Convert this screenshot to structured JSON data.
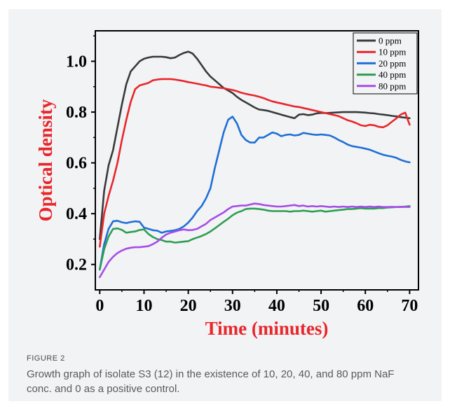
{
  "figure": {
    "label": "FIGURE 2",
    "caption": "Growth graph of isolate S3 (12) in the existence of 10, 20, 40, and 80 ppm NaF conc. and 0 as a positive control."
  },
  "chart_data": {
    "type": "line",
    "xlabel": "Time (minutes)",
    "ylabel": "Optical density",
    "xlim": [
      -1,
      72
    ],
    "ylim": [
      0.1,
      1.12
    ],
    "xticks": [
      0,
      10,
      20,
      30,
      40,
      50,
      60,
      70
    ],
    "yticks": [
      0.2,
      0.4,
      0.6,
      0.8,
      1.0
    ],
    "xtick_labels": [
      "0",
      "10",
      "20",
      "30",
      "40",
      "50",
      "60",
      "70"
    ],
    "ytick_labels": [
      "0.2",
      "0.4",
      "0.6",
      "0.8",
      "1.0"
    ],
    "xlabel_color": "#e8262b",
    "ylabel_color": "#e8262b",
    "legend_position": "top-right",
    "grid": false,
    "x": [
      0,
      1,
      2,
      3,
      4,
      5,
      6,
      7,
      8,
      9,
      10,
      11,
      12,
      13,
      14,
      15,
      16,
      17,
      18,
      19,
      20,
      21,
      22,
      23,
      24,
      25,
      26,
      27,
      28,
      29,
      30,
      31,
      32,
      33,
      34,
      35,
      36,
      37,
      38,
      39,
      40,
      41,
      42,
      43,
      44,
      45,
      46,
      47,
      48,
      49,
      50,
      51,
      52,
      53,
      54,
      55,
      56,
      57,
      58,
      59,
      60,
      61,
      62,
      63,
      64,
      65,
      66,
      67,
      68,
      69,
      70
    ],
    "series": [
      {
        "name": "0 ppm",
        "color": "#3a3a3a",
        "values": [
          0.3,
          0.49,
          0.59,
          0.65,
          0.74,
          0.83,
          0.91,
          0.96,
          0.98,
          1.0,
          1.01,
          1.015,
          1.018,
          1.018,
          1.018,
          1.016,
          1.012,
          1.015,
          1.025,
          1.033,
          1.038,
          1.03,
          1.01,
          0.985,
          0.96,
          0.94,
          0.925,
          0.91,
          0.895,
          0.885,
          0.875,
          0.86,
          0.848,
          0.838,
          0.828,
          0.818,
          0.81,
          0.808,
          0.805,
          0.8,
          0.795,
          0.79,
          0.785,
          0.78,
          0.776,
          0.79,
          0.792,
          0.788,
          0.79,
          0.795,
          0.797,
          0.796,
          0.797,
          0.798,
          0.799,
          0.8,
          0.8,
          0.8,
          0.8,
          0.799,
          0.798,
          0.796,
          0.795,
          0.792,
          0.79,
          0.788,
          0.785,
          0.783,
          0.78,
          0.778,
          0.776
        ]
      },
      {
        "name": "10 ppm",
        "color": "#e8262b",
        "values": [
          0.27,
          0.4,
          0.47,
          0.53,
          0.6,
          0.69,
          0.77,
          0.84,
          0.89,
          0.905,
          0.91,
          0.915,
          0.925,
          0.928,
          0.93,
          0.93,
          0.93,
          0.928,
          0.925,
          0.922,
          0.918,
          0.915,
          0.912,
          0.908,
          0.905,
          0.9,
          0.898,
          0.896,
          0.894,
          0.89,
          0.887,
          0.882,
          0.876,
          0.872,
          0.868,
          0.865,
          0.86,
          0.855,
          0.848,
          0.842,
          0.838,
          0.834,
          0.83,
          0.826,
          0.822,
          0.82,
          0.816,
          0.812,
          0.808,
          0.804,
          0.8,
          0.796,
          0.792,
          0.788,
          0.784,
          0.776,
          0.768,
          0.763,
          0.756,
          0.748,
          0.745,
          0.75,
          0.748,
          0.742,
          0.74,
          0.748,
          0.762,
          0.775,
          0.79,
          0.798,
          0.75
        ]
      },
      {
        "name": "20 ppm",
        "color": "#1f6fd6",
        "values": [
          0.18,
          0.28,
          0.34,
          0.37,
          0.372,
          0.366,
          0.363,
          0.367,
          0.37,
          0.368,
          0.345,
          0.34,
          0.335,
          0.333,
          0.325,
          0.33,
          0.332,
          0.335,
          0.34,
          0.35,
          0.365,
          0.385,
          0.41,
          0.43,
          0.46,
          0.5,
          0.58,
          0.65,
          0.72,
          0.77,
          0.782,
          0.755,
          0.71,
          0.69,
          0.68,
          0.68,
          0.7,
          0.7,
          0.71,
          0.72,
          0.715,
          0.705,
          0.71,
          0.712,
          0.708,
          0.71,
          0.718,
          0.715,
          0.712,
          0.71,
          0.712,
          0.71,
          0.708,
          0.7,
          0.69,
          0.682,
          0.672,
          0.666,
          0.663,
          0.66,
          0.656,
          0.652,
          0.645,
          0.638,
          0.632,
          0.628,
          0.625,
          0.62,
          0.612,
          0.606,
          0.602
        ]
      },
      {
        "name": "40 ppm",
        "color": "#2e9e52",
        "values": [
          0.18,
          0.26,
          0.31,
          0.34,
          0.342,
          0.336,
          0.325,
          0.328,
          0.33,
          0.336,
          0.338,
          0.32,
          0.308,
          0.3,
          0.296,
          0.29,
          0.29,
          0.286,
          0.288,
          0.29,
          0.292,
          0.3,
          0.306,
          0.312,
          0.32,
          0.33,
          0.342,
          0.355,
          0.368,
          0.38,
          0.394,
          0.404,
          0.41,
          0.418,
          0.42,
          0.42,
          0.418,
          0.416,
          0.412,
          0.41,
          0.41,
          0.41,
          0.41,
          0.408,
          0.41,
          0.41,
          0.412,
          0.41,
          0.408,
          0.41,
          0.412,
          0.408,
          0.41,
          0.412,
          0.414,
          0.416,
          0.418,
          0.418,
          0.42,
          0.422,
          0.42,
          0.42,
          0.42,
          0.422,
          0.422,
          0.424,
          0.425,
          0.426,
          0.427,
          0.428,
          0.43
        ]
      },
      {
        "name": "80 ppm",
        "color": "#a64de8",
        "values": [
          0.15,
          0.18,
          0.21,
          0.23,
          0.245,
          0.255,
          0.262,
          0.266,
          0.268,
          0.268,
          0.27,
          0.272,
          0.28,
          0.29,
          0.305,
          0.318,
          0.325,
          0.33,
          0.335,
          0.338,
          0.335,
          0.336,
          0.34,
          0.35,
          0.36,
          0.375,
          0.385,
          0.395,
          0.405,
          0.418,
          0.428,
          0.43,
          0.432,
          0.432,
          0.436,
          0.44,
          0.438,
          0.434,
          0.432,
          0.43,
          0.428,
          0.428,
          0.43,
          0.432,
          0.434,
          0.43,
          0.432,
          0.428,
          0.43,
          0.428,
          0.43,
          0.428,
          0.426,
          0.428,
          0.426,
          0.428,
          0.426,
          0.428,
          0.426,
          0.428,
          0.426,
          0.428,
          0.426,
          0.428,
          0.426,
          0.426,
          0.427,
          0.426,
          0.426,
          0.427,
          0.426
        ]
      }
    ]
  }
}
